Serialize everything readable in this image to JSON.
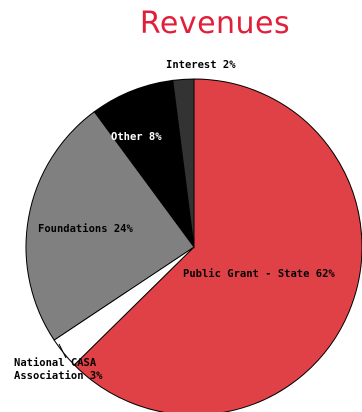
{
  "chart_data": {
    "type": "pie",
    "title": "Revenues",
    "slices": [
      {
        "label": "Public Grant - State 62%",
        "value": 62,
        "color": "#e04146"
      },
      {
        "label": "National CASA Association 3%",
        "value": 3,
        "color": "#ffffff"
      },
      {
        "label": "Foundations 24%",
        "value": 24,
        "color": "#808080"
      },
      {
        "label": "Other 8%",
        "value": 8,
        "color": "#000000"
      },
      {
        "label": "Interest 2%",
        "value": 2,
        "color": "#333333"
      }
    ]
  }
}
